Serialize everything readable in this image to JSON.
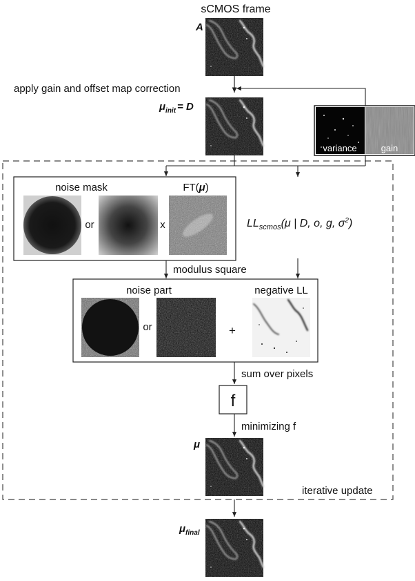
{
  "title": "sCMOS frame",
  "frame_label": "A",
  "step_gain_offset": "apply gain and offset map correction",
  "mu_init": {
    "symbol": "μ",
    "subscript": "init",
    "equals": "= D"
  },
  "maps": {
    "variance": "variance",
    "gain": "gain"
  },
  "noise_mask": {
    "title": "noise mask",
    "ft_prefix": "FT(",
    "ft_symbol": "μ",
    "ft_suffix": ")",
    "or": "or",
    "times": "x"
  },
  "ll_formula": {
    "prefix": "LL",
    "subscript": "scmos",
    "args": "(μ | D, o, g, σ",
    "sup": "2",
    "close": ")"
  },
  "step_modulus": "modulus square",
  "noise_part": {
    "title": "noise part",
    "or": "or",
    "plus": "+"
  },
  "negative_ll": "negative LL",
  "step_sum": "sum over pixels",
  "f_box": "f",
  "step_minimize": "minimizing f",
  "mu_label": "μ",
  "iterative": "iterative update",
  "mu_final": {
    "symbol": "μ",
    "subscript": "final"
  }
}
